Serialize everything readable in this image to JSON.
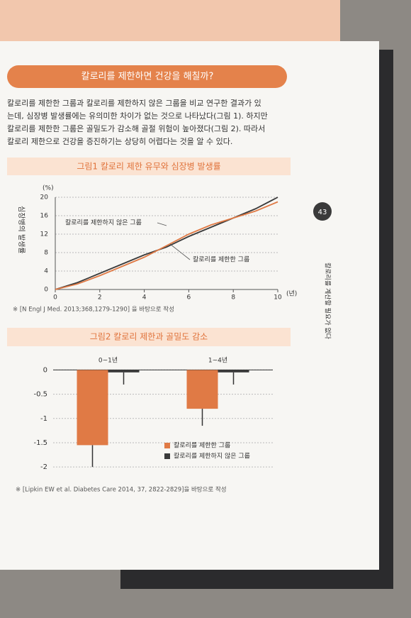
{
  "header": {
    "title": "칼로리를 제한하면 건강을 해칠까?"
  },
  "paragraph": [
    "칼로리를 제한한 그룹과 칼로리를 제한하지 않은 그룹을 비교 연구한 결과가 있",
    "는데, 심장병 발생률에는 유의미한 차이가 없는 것으로 나타났다(그림 1). 하지만",
    "칼로리를 제한한 그룹은 골밀도가 감소해 골절 위험이 높아졌다(그림 2). 따라서",
    "칼로리 제한으로 건강을 증진하기는 상당히 어렵다는 것을 알 수 있다."
  ],
  "page_number": "43",
  "side_text": "칼로리를 계산할 필요가 없다",
  "chart_data": [
    {
      "type": "line",
      "title": "그림1  칼로리 제한 유무와 심장병 발생률",
      "ylabel": "심장병의 발생률",
      "yunit": "(%)",
      "xunit": "(년)",
      "x": [
        0,
        1,
        2,
        3,
        4,
        5,
        6,
        7,
        8,
        9,
        10
      ],
      "series": [
        {
          "name": "칼로리를 제한하지 않은 그룹",
          "color": "#3a3a3a",
          "values": [
            0,
            1.5,
            3.5,
            5.5,
            7.5,
            9.2,
            11.5,
            13.5,
            15.5,
            17.5,
            20
          ]
        },
        {
          "name": "칼로리를 제한한 그룹",
          "color": "#e07a45",
          "values": [
            0,
            1.2,
            3,
            5,
            7,
            9.5,
            12,
            14,
            15.5,
            17,
            19
          ]
        }
      ],
      "xlim": [
        0,
        10
      ],
      "xticks": [
        0,
        2,
        4,
        6,
        8,
        10
      ],
      "ylim": [
        0,
        20
      ],
      "yticks": [
        0,
        4,
        8,
        12,
        16,
        20
      ],
      "grid": true,
      "source": "※ [N Engl J Med. 2013;368,1279-1290] 을 바탕으로 작성"
    },
    {
      "type": "bar",
      "title": "그림2  칼로리 제한과 골밀도 감소",
      "categories": [
        "0~1년",
        "1~4년"
      ],
      "series": [
        {
          "name": "칼로리를 제한한 그룹",
          "color": "#e07a45",
          "values": [
            -1.55,
            -0.8
          ],
          "errors": [
            0.45,
            0.35
          ]
        },
        {
          "name": "칼로리를 제한하지 않은 그룹",
          "color": "#3a3a3a",
          "values": [
            -0.05,
            -0.05
          ],
          "errors": [
            0.25,
            0.25
          ]
        }
      ],
      "ylim": [
        -2.1,
        0.05
      ],
      "yticks": [
        0,
        -0.5,
        -1,
        -1.5,
        -2
      ],
      "grid": true,
      "source": "※ [Lipkin EW et al. Diabetes Care 2014, 37, 2822-2829]을 바탕으로 작성"
    }
  ]
}
